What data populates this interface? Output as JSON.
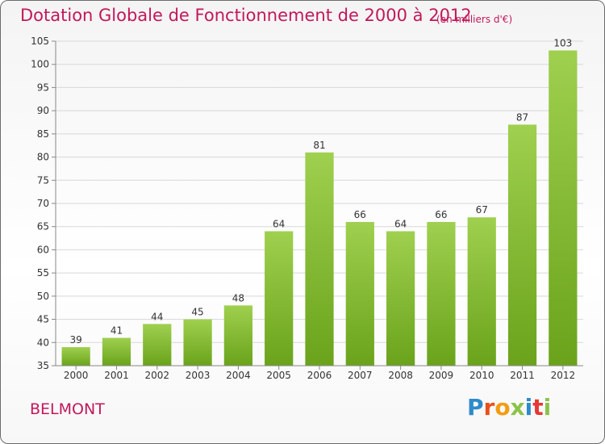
{
  "header": {
    "title": "Dotation Globale de Fonctionnement de 2000 à 2012",
    "subtitle": "(en milliers d'€)"
  },
  "location": "BELMONT",
  "logo": {
    "text": "Proxiti",
    "letters": [
      "P",
      "r",
      "o",
      "x",
      "i",
      "t",
      "i"
    ],
    "colors": [
      "#2e8bc9",
      "#e8501a",
      "#f39c12",
      "#8bc34a",
      "#2e8bc9",
      "#e53935",
      "#8bc34a"
    ]
  },
  "colors": {
    "title": "#c2185b",
    "bar_light": "#9fd04f",
    "bar_dark": "#6aa31b",
    "grid": "#d8d8d8",
    "axis": "#888888"
  },
  "chart_data": {
    "type": "bar",
    "categories": [
      "2000",
      "2001",
      "2002",
      "2003",
      "2004",
      "2005",
      "2006",
      "2007",
      "2008",
      "2009",
      "2010",
      "2011",
      "2012"
    ],
    "values": [
      39,
      41,
      44,
      45,
      48,
      64,
      81,
      66,
      64,
      66,
      67,
      87,
      103
    ],
    "ylim": [
      35,
      105
    ],
    "yticks": [
      35,
      40,
      45,
      50,
      55,
      60,
      65,
      70,
      75,
      80,
      85,
      90,
      95,
      100,
      105
    ],
    "grid": true,
    "data_labels": true
  }
}
